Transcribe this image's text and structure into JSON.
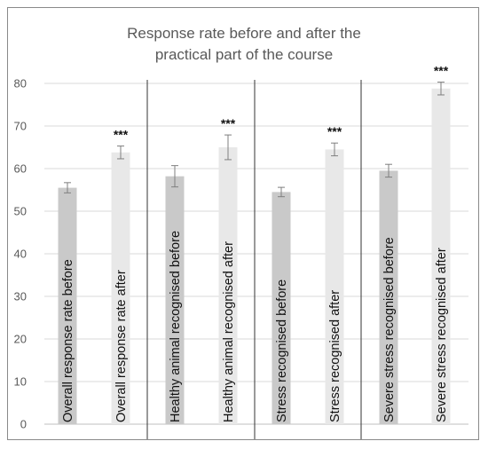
{
  "chart_data": {
    "type": "bar",
    "title_lines": [
      "Response rate before and after the",
      "practical part of the course"
    ],
    "ylim": [
      0,
      80
    ],
    "yticks": [
      0,
      10,
      20,
      30,
      40,
      50,
      60,
      70,
      80
    ],
    "grid": true,
    "categories": [
      "Overall response rate before",
      "Overall response rate after",
      "Healthy animal recognised before",
      "Healthy animal recognised after",
      "Stress recognised before",
      "Stress recognised after",
      "Severe stress recognised before",
      "Severe stress recognised after"
    ],
    "values": [
      55.5,
      63.8,
      58.2,
      65.0,
      54.5,
      64.5,
      59.5,
      78.8
    ],
    "error": [
      1.2,
      1.5,
      2.5,
      2.9,
      1.1,
      1.5,
      1.5,
      1.5
    ],
    "significance": [
      "",
      "***",
      "",
      "***",
      "",
      "***",
      "",
      "***"
    ],
    "colors": {
      "before": "#c9c9c9",
      "after": "#e8e8e8",
      "grid": "#d9d9d9",
      "divider": "#333333",
      "error_bar": "#7f7f7f"
    }
  }
}
